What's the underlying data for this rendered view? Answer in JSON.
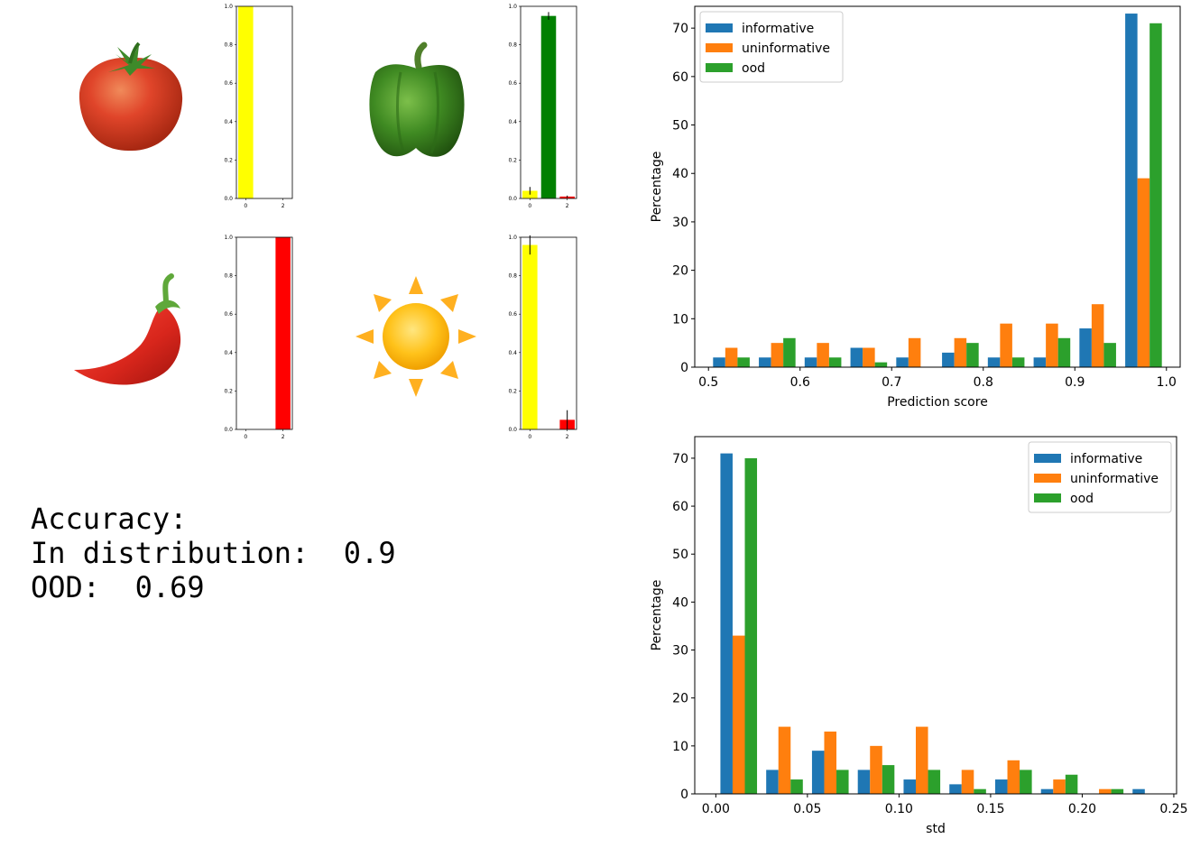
{
  "accuracy": {
    "heading": "Accuracy:",
    "in_dist_label": "In distribution:",
    "in_dist_value": "0.9",
    "ood_label": "OOD:",
    "ood_value": "0.69"
  },
  "emojis": [
    {
      "name": "tomato",
      "icon": "tomato-icon"
    },
    {
      "name": "bell-pepper",
      "icon": "bell-pepper-icon"
    },
    {
      "name": "hot-pepper",
      "icon": "hot-pepper-icon"
    },
    {
      "name": "sun",
      "icon": "sun-icon"
    }
  ],
  "colors": {
    "informative": "#1f77b4",
    "uninformative": "#ff7f0e",
    "ood": "#2ca02c",
    "class0": "#ffff00",
    "class1": "#008000",
    "class2": "#ff0000"
  },
  "chart_data": [
    {
      "type": "bar",
      "panel": "tomato",
      "categories": [
        0,
        1,
        2
      ],
      "values": [
        1.0,
        0.0,
        0.0
      ],
      "errors": [
        0,
        0,
        0
      ],
      "colors": [
        "#ffff00",
        "#008000",
        "#ff0000"
      ],
      "ylim": [
        0,
        1.0
      ],
      "yticks": [
        "0.0",
        "0.2",
        "0.4",
        "0.6",
        "0.8",
        "1.0"
      ],
      "xticks": [
        "0",
        "2"
      ]
    },
    {
      "type": "bar",
      "panel": "bell-pepper",
      "categories": [
        0,
        1,
        2
      ],
      "values": [
        0.04,
        0.95,
        0.01
      ],
      "errors": [
        0.02,
        0.02,
        0.005
      ],
      "colors": [
        "#ffff00",
        "#008000",
        "#ff0000"
      ],
      "ylim": [
        0,
        1.0
      ],
      "yticks": [
        "0.0",
        "0.2",
        "0.4",
        "0.6",
        "0.8",
        "1.0"
      ],
      "xticks": [
        "0",
        "2"
      ]
    },
    {
      "type": "bar",
      "panel": "hot-pepper",
      "categories": [
        0,
        1,
        2
      ],
      "values": [
        0.0,
        0.0,
        1.0
      ],
      "errors": [
        0,
        0,
        0
      ],
      "colors": [
        "#ffff00",
        "#008000",
        "#ff0000"
      ],
      "ylim": [
        0,
        1.0
      ],
      "yticks": [
        "0.0",
        "0.2",
        "0.4",
        "0.6",
        "0.8",
        "1.0"
      ],
      "xticks": [
        "0",
        "2"
      ]
    },
    {
      "type": "bar",
      "panel": "sun",
      "categories": [
        0,
        1,
        2
      ],
      "values": [
        0.96,
        0.0,
        0.05
      ],
      "errors": [
        0.05,
        0,
        0.05
      ],
      "colors": [
        "#ffff00",
        "#008000",
        "#ff0000"
      ],
      "ylim": [
        0,
        1.0
      ],
      "yticks": [
        "0.0",
        "0.2",
        "0.4",
        "0.6",
        "0.8",
        "1.0"
      ],
      "xticks": [
        "0",
        "2"
      ]
    },
    {
      "type": "bar",
      "panel": "prediction-score-histogram",
      "xlabel": "Prediction score",
      "ylabel": "Percentage",
      "xlim": [
        0.485,
        1.015
      ],
      "ylim": [
        0,
        74.5
      ],
      "xticks": [
        "0.5",
        "0.6",
        "0.7",
        "0.8",
        "0.9",
        "1.0"
      ],
      "yticks": [
        "0",
        "10",
        "20",
        "30",
        "40",
        "50",
        "60",
        "70"
      ],
      "bin_edges": [
        0.5,
        0.55,
        0.6,
        0.65,
        0.7,
        0.75,
        0.8,
        0.85,
        0.9,
        0.95,
        1.0
      ],
      "legend": "top-left",
      "series": [
        {
          "name": "informative",
          "values": [
            2,
            2,
            2,
            4,
            2,
            3,
            2,
            2,
            8,
            73
          ]
        },
        {
          "name": "uninformative",
          "values": [
            4,
            5,
            5,
            4,
            6,
            6,
            9,
            9,
            13,
            39
          ]
        },
        {
          "name": "ood",
          "values": [
            2,
            6,
            2,
            1,
            0,
            5,
            2,
            6,
            5,
            71
          ]
        }
      ]
    },
    {
      "type": "bar",
      "panel": "std-histogram",
      "xlabel": "std",
      "ylabel": "Percentage",
      "xlim": [
        -0.0115,
        0.2515
      ],
      "ylim": [
        0,
        74.5
      ],
      "xticks": [
        "0.00",
        "0.05",
        "0.10",
        "0.15",
        "0.20",
        "0.25"
      ],
      "yticks": [
        "0",
        "10",
        "20",
        "30",
        "40",
        "50",
        "60",
        "70"
      ],
      "bin_edges": [
        0.0,
        0.025,
        0.05,
        0.075,
        0.1,
        0.125,
        0.15,
        0.175,
        0.2,
        0.225,
        0.25
      ],
      "legend": "top-right",
      "series": [
        {
          "name": "informative",
          "values": [
            71,
            5,
            9,
            5,
            3,
            2,
            3,
            1,
            0,
            1
          ]
        },
        {
          "name": "uninformative",
          "values": [
            33,
            14,
            13,
            10,
            14,
            5,
            7,
            3,
            1,
            0
          ]
        },
        {
          "name": "ood",
          "values": [
            70,
            3,
            5,
            6,
            5,
            1,
            5,
            4,
            1,
            0
          ]
        }
      ]
    }
  ]
}
